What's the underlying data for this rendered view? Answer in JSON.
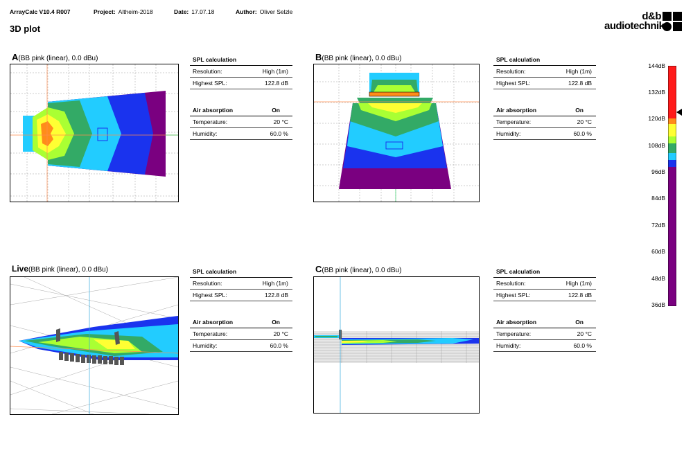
{
  "header": {
    "app": "ArrayCalc V10.4 R007",
    "project_label": "Project:",
    "project": "Altheim-2018",
    "date_label": "Date:",
    "date": "17.07.18",
    "author_label": "Author:",
    "author": "Oliver Selzle",
    "page_title": "3D plot",
    "logo_line1": "d&b",
    "logo_line2": "audiotechnik"
  },
  "plots": [
    {
      "letter": "A",
      "title": "(BB pink (linear), 0.0 dBu)"
    },
    {
      "letter": "B",
      "title": "(BB pink (linear), 0.0 dBu)"
    },
    {
      "letter": "Live",
      "title": "(BB pink (linear), 0.0 dBu)"
    },
    {
      "letter": "C",
      "title": "(BB pink (linear), 0.0 dBu)"
    }
  ],
  "info": {
    "spl_head": "SPL calculation",
    "resolution_label": "Resolution:",
    "resolution": "High (1m)",
    "highest_label": "Highest SPL:",
    "highest": "122.8 dB",
    "air_head": "Air absorption",
    "air": "On",
    "temp_label": "Temperature:",
    "temp": "20 °C",
    "hum_label": "Humidity:",
    "hum": "60.0 %"
  },
  "scale": {
    "labels": [
      "144dB",
      "132dB",
      "120dB",
      "108dB",
      "96dB",
      "84dB",
      "72dB",
      "60dB",
      "48dB",
      "36dB"
    ],
    "colors": {
      "red": "#ff1a1a",
      "orange": "#ff8c1a",
      "yellow": "#ffff33",
      "lime": "#aaff33",
      "green": "#33aa66",
      "cyan": "#22ccff",
      "blue": "#1a33ee",
      "purple": "#7a0080"
    }
  }
}
